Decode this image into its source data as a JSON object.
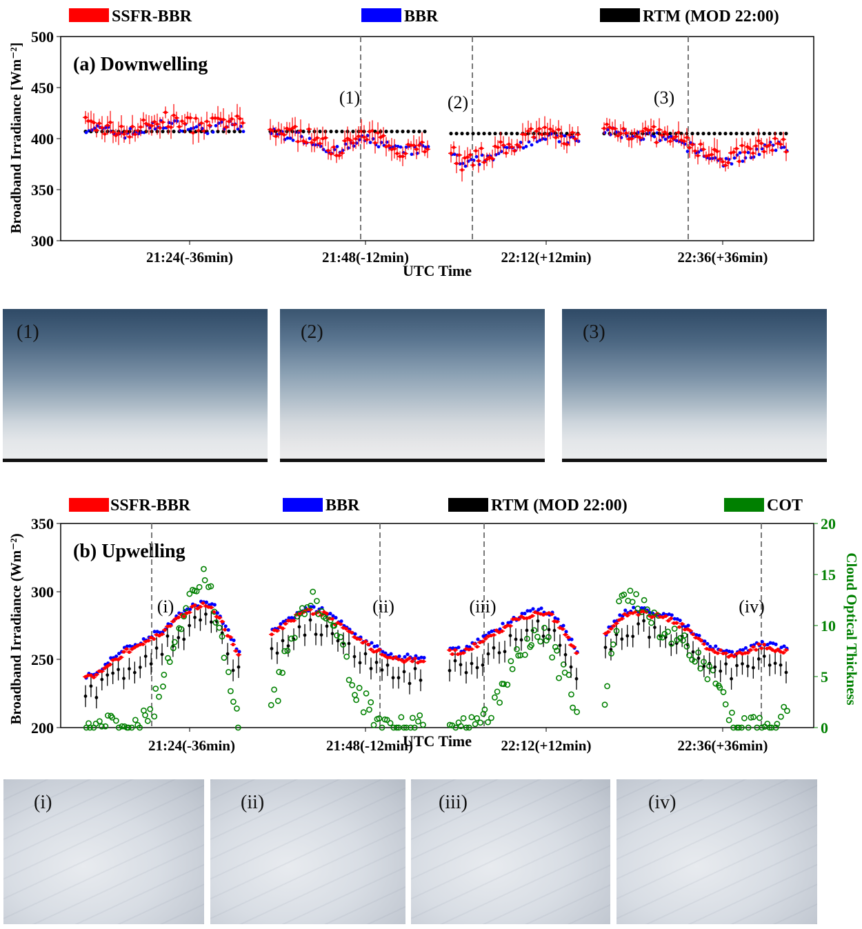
{
  "chart_data": [
    {
      "type": "scatter",
      "title": "(a) Downwelling",
      "xlabel": "UTC Time",
      "ylabel": "Broadband Irradiance [Wm⁻²]",
      "ylim": [
        300,
        500
      ],
      "yticks": [
        "300",
        "350",
        "400",
        "450",
        "500"
      ],
      "xticks": [
        "21:24(-36min)",
        "21:48(-12min)",
        "22:12(+12min)",
        "22:36(+36min)"
      ],
      "legend": [
        "SSFR-BBR",
        "BBR",
        "RTM (MOD 22:00)"
      ],
      "legend_placement": "top",
      "colors": {
        "SSFR-BBR": "#ff0000",
        "BBR": "#0000ff",
        "RTM (MOD 22:00)": "#000000"
      },
      "markers": [
        "(1)",
        "(2)",
        "(3)"
      ],
      "segments": [
        {
          "ssfr": [
            414,
            412,
            409,
            408,
            410,
            414,
            418,
            416,
            414,
            412,
            414,
            416,
            413
          ]
        },
        {
          "ssfr": [
            408,
            407,
            405,
            402,
            395,
            390,
            395,
            402,
            400,
            395,
            390,
            392,
            394
          ]
        },
        {
          "ssfr": [
            390,
            375,
            380,
            385,
            388,
            392,
            398,
            402,
            405,
            404,
            402,
            400
          ]
        },
        {
          "ssfr": [
            410,
            408,
            406,
            405,
            402,
            398,
            392,
            384,
            380,
            385,
            390,
            395,
            394
          ]
        }
      ],
      "rtm_levels": [
        407,
        407,
        405,
        405,
        402
      ]
    },
    {
      "type": "scatter",
      "title": "(b) Upwelling",
      "xlabel": "UTC Time",
      "ylabel": "Broadband Irradiance (Wm⁻²)",
      "ylabel_right": "Cloud Optical Thickness",
      "ylim": [
        200,
        350
      ],
      "ylim_right": [
        0,
        20
      ],
      "yticks": [
        "200",
        "250",
        "300",
        "350"
      ],
      "yticks_right": [
        "0",
        "5",
        "10",
        "15",
        "20"
      ],
      "xticks": [
        "21:24(-36min)",
        "21:48(-12min)",
        "22:12(+12min)",
        "22:36(+36min)"
      ],
      "legend": [
        "SSFR-BBR",
        "BBR",
        "RTM (MOD 22:00)",
        "COT"
      ],
      "legend_placement": "top",
      "colors": {
        "SSFR-BBR": "#ff0000",
        "BBR": "#0000ff",
        "RTM (MOD 22:00)": "#000000",
        "COT": "#008000"
      },
      "markers": [
        "(i)",
        "(ii)",
        "(iii)",
        "(iv)"
      ],
      "segments": [
        {
          "ssfr": [
            236,
            240,
            248,
            255,
            260,
            265,
            270,
            278,
            286,
            290,
            288,
            272,
            252
          ],
          "cot": [
            0,
            0,
            0,
            0,
            0,
            1,
            4,
            8,
            12,
            15,
            13,
            6,
            1
          ]
        },
        {
          "ssfr": [
            270,
            275,
            282,
            286,
            284,
            278,
            270,
            264,
            258,
            253,
            250,
            250,
            248
          ],
          "cot": [
            2,
            6,
            10,
            13,
            12,
            10,
            6,
            3,
            1,
            0,
            0,
            0,
            0
          ]
        },
        {
          "ssfr": [
            255,
            256,
            260,
            266,
            272,
            278,
            282,
            285,
            282,
            270,
            254
          ],
          "cot": [
            0,
            0,
            0,
            1,
            3,
            6,
            8,
            9,
            8,
            5,
            2
          ]
        },
        {
          "ssfr": [
            268,
            280,
            285,
            284,
            282,
            280,
            274,
            266,
            258,
            255,
            252,
            256,
            260,
            258,
            256
          ],
          "cot": [
            3,
            12,
            13,
            12,
            10,
            9,
            8,
            7,
            5,
            3,
            0,
            0,
            0,
            0,
            1
          ]
        }
      ]
    }
  ],
  "photos_a": [
    "(1)",
    "(2)",
    "(3)"
  ],
  "photos_b": [
    "(i)",
    "(ii)",
    "(iii)",
    "(iv)"
  ]
}
